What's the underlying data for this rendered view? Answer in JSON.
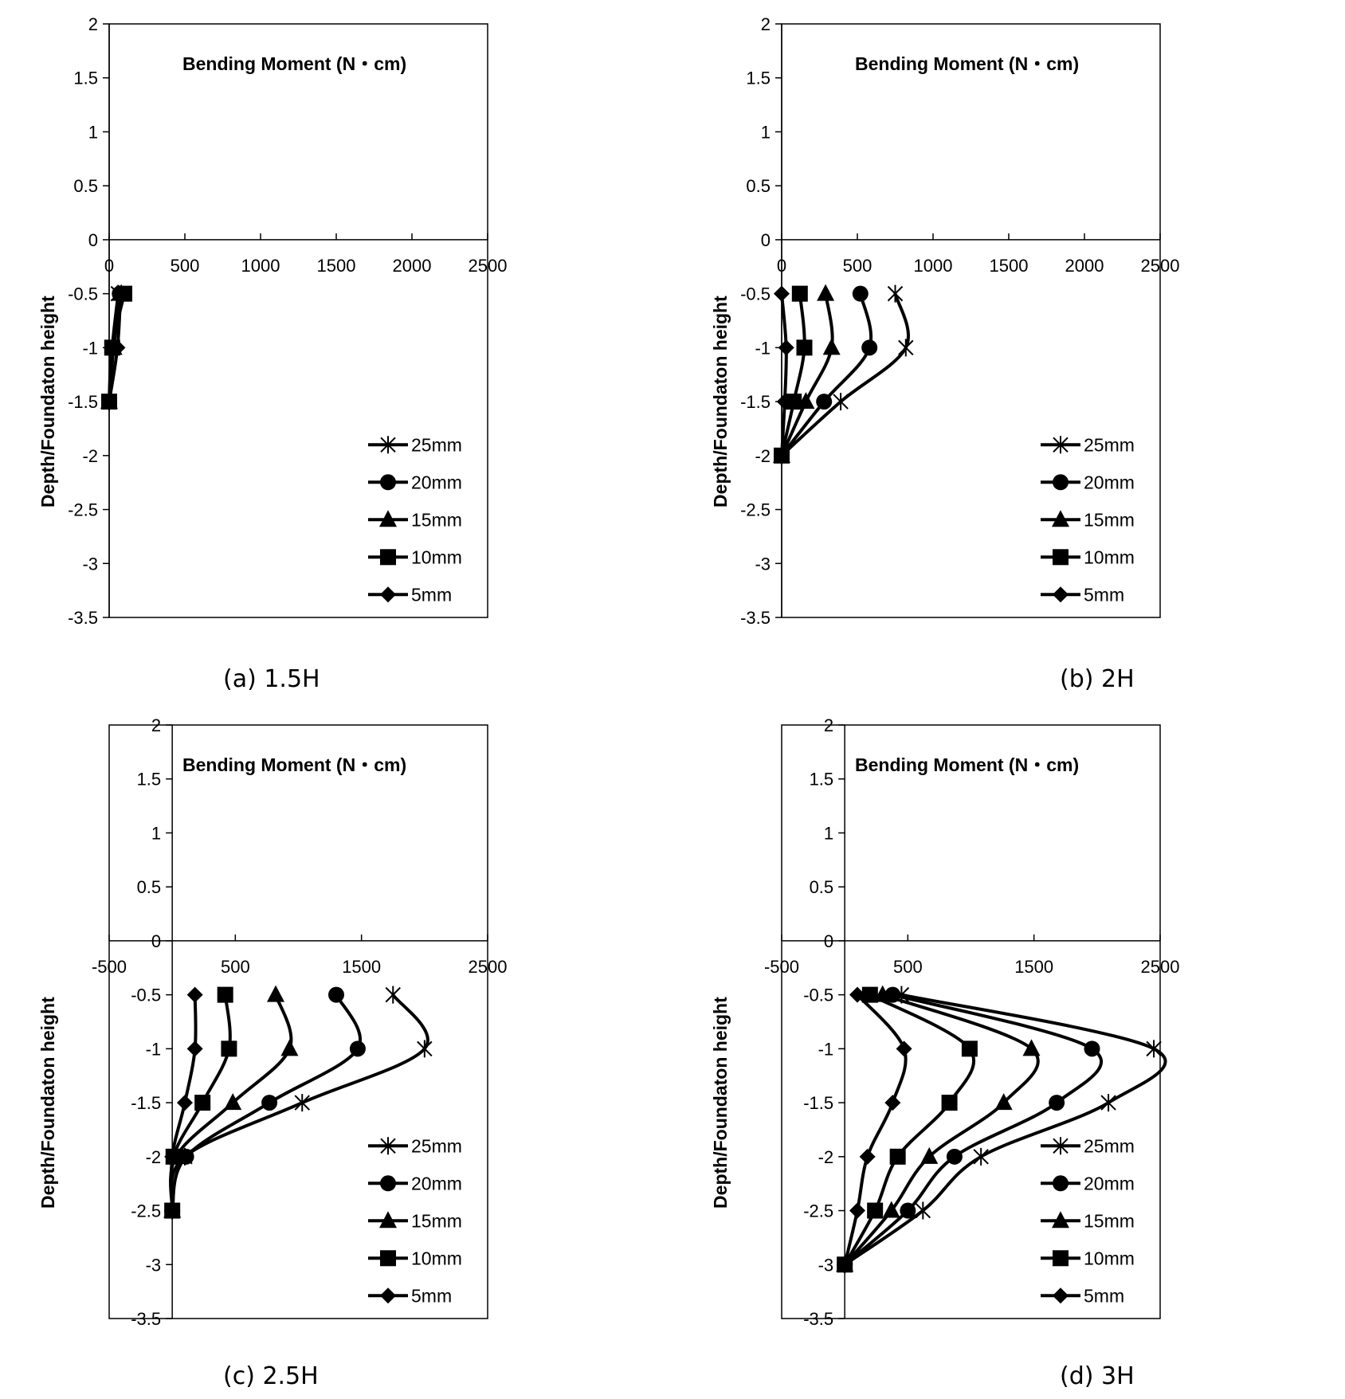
{
  "figure": {
    "panels": [
      {
        "caption": "(a) 1.5H"
      },
      {
        "caption": "(b) 2H"
      },
      {
        "caption": "(c) 2.5H"
      },
      {
        "caption": "(d) 3H"
      }
    ]
  },
  "chart_data": [
    {
      "type": "line",
      "title": "Bending Moment (N・cm)",
      "xlabel": "",
      "ylabel": "Depth/Foundaton height",
      "xlim": [
        0,
        2500
      ],
      "ylim": [
        -3.5,
        2
      ],
      "x_ticks": [
        "0",
        "500",
        "1000",
        "1500",
        "2000",
        "2500"
      ],
      "y_ticks": [
        "2",
        "1.5",
        "1",
        "0.5",
        "0",
        "-0.5",
        "-1",
        "-1.5",
        "-2",
        "-2.5",
        "-3",
        "-3.5"
      ],
      "legend_position": "lower-right",
      "grid": false,
      "series": [
        {
          "name": "25mm",
          "marker": "asterisk",
          "points": [
            [
              60,
              -0.5
            ],
            [
              20,
              -1.0
            ],
            [
              0,
              -1.5
            ]
          ]
        },
        {
          "name": "20mm",
          "marker": "circle",
          "points": [
            [
              70,
              -0.5
            ],
            [
              25,
              -1.0
            ],
            [
              0,
              -1.5
            ]
          ]
        },
        {
          "name": "15mm",
          "marker": "triangle",
          "points": [
            [
              80,
              -0.5
            ],
            [
              30,
              -1.0
            ],
            [
              0,
              -1.5
            ]
          ]
        },
        {
          "name": "10mm",
          "marker": "square",
          "points": [
            [
              100,
              -0.5
            ],
            [
              20,
              -1.0
            ],
            [
              0,
              -1.5
            ]
          ]
        },
        {
          "name": "5mm",
          "marker": "diamond",
          "points": [
            [
              75,
              -0.5
            ],
            [
              55,
              -1.0
            ],
            [
              0,
              -1.5
            ]
          ]
        }
      ]
    },
    {
      "type": "line",
      "title": "Bending Moment (N・cm)",
      "xlabel": "",
      "ylabel": "Depth/Foundaton height",
      "xlim": [
        0,
        2500
      ],
      "ylim": [
        -3.5,
        2
      ],
      "x_ticks": [
        "0",
        "500",
        "1000",
        "1500",
        "2000",
        "2500"
      ],
      "y_ticks": [
        "2",
        "1.5",
        "1",
        "0.5",
        "0",
        "-0.5",
        "-1",
        "-1.5",
        "-2",
        "-2.5",
        "-3",
        "-3.5"
      ],
      "legend_position": "lower-right",
      "grid": false,
      "series": [
        {
          "name": "25mm",
          "marker": "asterisk",
          "points": [
            [
              750,
              -0.5
            ],
            [
              820,
              -1.0
            ],
            [
              390,
              -1.5
            ],
            [
              0,
              -2.0
            ]
          ]
        },
        {
          "name": "20mm",
          "marker": "circle",
          "points": [
            [
              520,
              -0.5
            ],
            [
              580,
              -1.0
            ],
            [
              280,
              -1.5
            ],
            [
              0,
              -2.0
            ]
          ]
        },
        {
          "name": "15mm",
          "marker": "triangle",
          "points": [
            [
              290,
              -0.5
            ],
            [
              330,
              -1.0
            ],
            [
              160,
              -1.5
            ],
            [
              0,
              -2.0
            ]
          ]
        },
        {
          "name": "10mm",
          "marker": "square",
          "points": [
            [
              120,
              -0.5
            ],
            [
              150,
              -1.0
            ],
            [
              80,
              -1.5
            ],
            [
              0,
              -2.0
            ]
          ]
        },
        {
          "name": "5mm",
          "marker": "diamond",
          "points": [
            [
              0,
              -0.5
            ],
            [
              30,
              -1.0
            ],
            [
              20,
              -1.5
            ],
            [
              0,
              -2.0
            ]
          ]
        }
      ]
    },
    {
      "type": "line",
      "title": "Bending Moment (N・cm)",
      "xlabel": "",
      "ylabel": "Depth/Foundaton height",
      "xlim": [
        -500,
        2500
      ],
      "ylim": [
        -3.5,
        2
      ],
      "x_ticks": [
        "-500",
        "500",
        "1500",
        "2500"
      ],
      "y_ticks": [
        "2",
        "1.5",
        "1",
        "0.5",
        "0",
        "-0.5",
        "-1",
        "-1.5",
        "-2",
        "-2.5",
        "-3",
        "-3.5"
      ],
      "legend_position": "lower-right",
      "grid": false,
      "series": [
        {
          "name": "25mm",
          "marker": "asterisk",
          "points": [
            [
              1750,
              -0.5
            ],
            [
              2000,
              -1.0
            ],
            [
              1030,
              -1.5
            ],
            [
              100,
              -2.0
            ],
            [
              0,
              -2.5
            ]
          ]
        },
        {
          "name": "20mm",
          "marker": "circle",
          "points": [
            [
              1300,
              -0.5
            ],
            [
              1470,
              -1.0
            ],
            [
              770,
              -1.5
            ],
            [
              110,
              -2.0
            ],
            [
              0,
              -2.5
            ]
          ]
        },
        {
          "name": "15mm",
          "marker": "triangle",
          "points": [
            [
              820,
              -0.5
            ],
            [
              930,
              -1.0
            ],
            [
              480,
              -1.5
            ],
            [
              30,
              -2.0
            ],
            [
              0,
              -2.5
            ]
          ]
        },
        {
          "name": "10mm",
          "marker": "square",
          "points": [
            [
              420,
              -0.5
            ],
            [
              450,
              -1.0
            ],
            [
              240,
              -1.5
            ],
            [
              10,
              -2.0
            ],
            [
              0,
              -2.5
            ]
          ]
        },
        {
          "name": "5mm",
          "marker": "diamond",
          "points": [
            [
              180,
              -0.5
            ],
            [
              180,
              -1.0
            ],
            [
              100,
              -1.5
            ],
            [
              0,
              -2.0
            ],
            [
              0,
              -2.5
            ]
          ]
        }
      ]
    },
    {
      "type": "line",
      "title": "Bending Moment (N・cm)",
      "xlabel": "",
      "ylabel": "Depth/Foundaton height",
      "xlim": [
        -500,
        2500
      ],
      "ylim": [
        -3.5,
        2
      ],
      "x_ticks": [
        "-500",
        "500",
        "1500",
        "2500"
      ],
      "y_ticks": [
        "2",
        "1.5",
        "1",
        "0.5",
        "0",
        "-0.5",
        "-1",
        "-1.5",
        "-2",
        "-2.5",
        "-3",
        "-3.5"
      ],
      "legend_position": "lower-right",
      "grid": false,
      "series": [
        {
          "name": "25mm",
          "marker": "asterisk",
          "points": [
            [
              450,
              -0.5
            ],
            [
              2450,
              -1.0
            ],
            [
              2090,
              -1.5
            ],
            [
              1080,
              -2.0
            ],
            [
              620,
              -2.5
            ],
            [
              0,
              -3.0
            ]
          ]
        },
        {
          "name": "20mm",
          "marker": "circle",
          "points": [
            [
              380,
              -0.5
            ],
            [
              1960,
              -1.0
            ],
            [
              1680,
              -1.5
            ],
            [
              870,
              -2.0
            ],
            [
              500,
              -2.5
            ],
            [
              0,
              -3.0
            ]
          ]
        },
        {
          "name": "15mm",
          "marker": "triangle",
          "points": [
            [
              300,
              -0.5
            ],
            [
              1480,
              -1.0
            ],
            [
              1260,
              -1.5
            ],
            [
              670,
              -2.0
            ],
            [
              370,
              -2.5
            ],
            [
              0,
              -3.0
            ]
          ]
        },
        {
          "name": "10mm",
          "marker": "square",
          "points": [
            [
              200,
              -0.5
            ],
            [
              990,
              -1.0
            ],
            [
              830,
              -1.5
            ],
            [
              420,
              -2.0
            ],
            [
              240,
              -2.5
            ],
            [
              0,
              -3.0
            ]
          ]
        },
        {
          "name": "5mm",
          "marker": "diamond",
          "points": [
            [
              100,
              -0.5
            ],
            [
              470,
              -1.0
            ],
            [
              380,
              -1.5
            ],
            [
              180,
              -2.0
            ],
            [
              100,
              -2.5
            ],
            [
              0,
              -3.0
            ]
          ]
        }
      ]
    }
  ]
}
